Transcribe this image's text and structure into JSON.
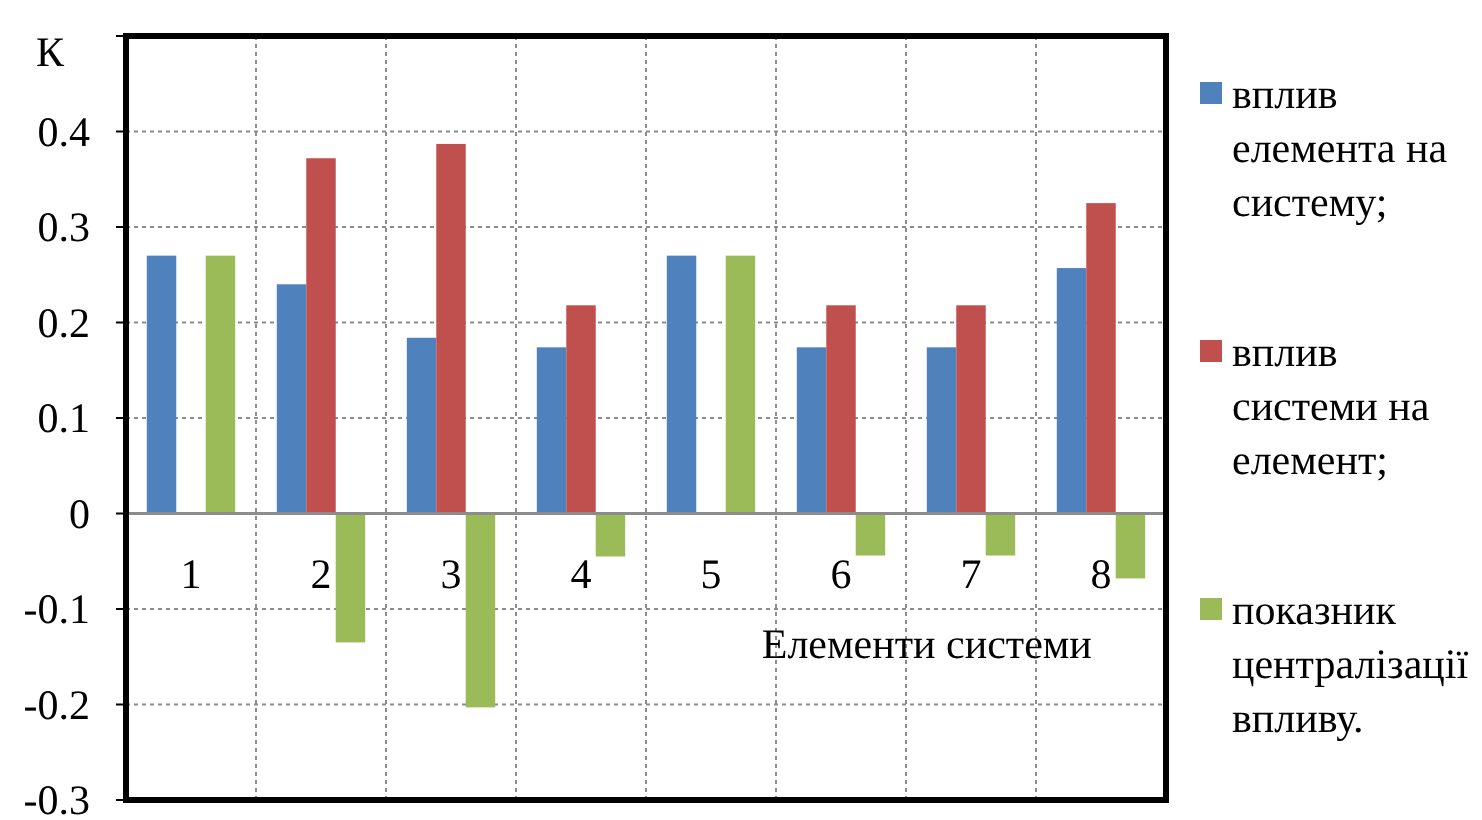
{
  "chart_data": {
    "type": "bar",
    "xlabel": "Елементи системи",
    "ylabel": "К",
    "categories": [
      "1",
      "2",
      "3",
      "4",
      "5",
      "6",
      "7",
      "8"
    ],
    "series": [
      {
        "name": "вплив елемента на систему;",
        "color": "#4f81bd",
        "values": [
          0.27,
          0.24,
          0.184,
          0.174,
          0.27,
          0.174,
          0.174,
          0.257
        ]
      },
      {
        "name": "вплив системи на елемент;",
        "color": "#c0504d",
        "values": [
          null,
          0.372,
          0.387,
          0.218,
          null,
          0.218,
          0.218,
          0.325
        ]
      },
      {
        "name": "показник централізації впливу.",
        "color": "#9bbb59",
        "values": [
          0.27,
          -0.135,
          -0.203,
          -0.045,
          0.27,
          -0.044,
          -0.044,
          -0.068
        ]
      }
    ],
    "ylim": [
      -0.3,
      0.5
    ],
    "yticks": [
      -0.3,
      -0.2,
      -0.1,
      0,
      0.1,
      0.2,
      0.3,
      0.4,
      {
        "value": 0.5,
        "label": null
      }
    ],
    "grid": true,
    "legend": "right"
  }
}
